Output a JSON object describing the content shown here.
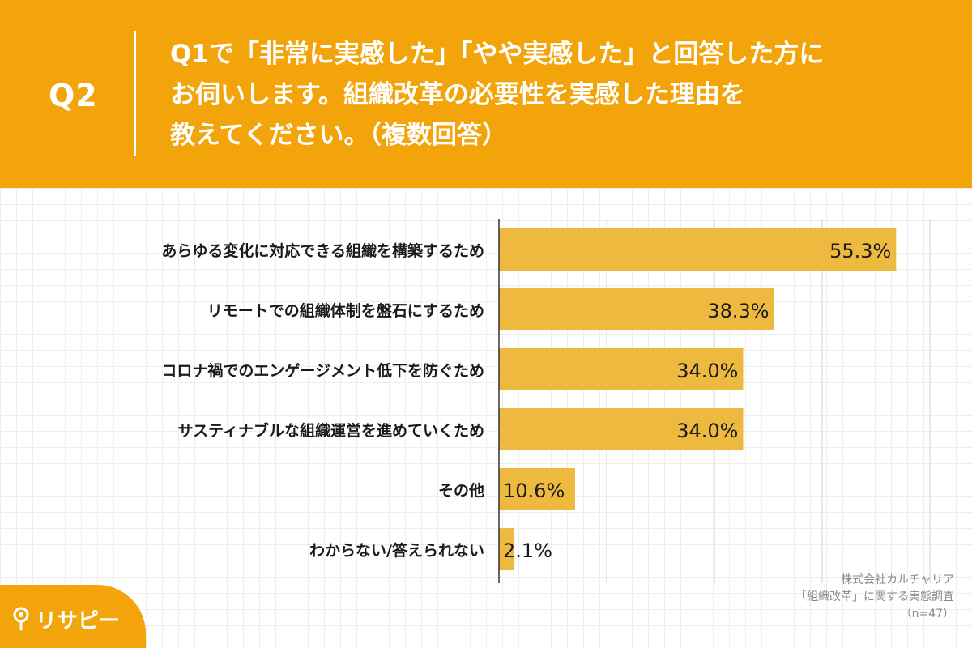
{
  "header": {
    "q_label": "Q2",
    "question_lines": [
      "Q1で「非常に実感した」「やや実感した」と回答した方に",
      "お伺いします。組織改革の必要性を実感した理由を",
      "教えてください。（複数回答）"
    ]
  },
  "chart_data": {
    "type": "bar",
    "orientation": "horizontal",
    "categories": [
      "あらゆる変化に対応できる組織を構築するため",
      "リモートでの組織体制を盤石にするため",
      "コロナ禍でのエンゲージメント低下を防ぐため",
      "サスティナブルな組織運営を進めていくため",
      "その他",
      "わからない/答えられない"
    ],
    "values": [
      55.3,
      38.3,
      34.0,
      34.0,
      10.6,
      2.1
    ],
    "value_labels": [
      "55.3%",
      "38.3%",
      "34.0%",
      "34.0%",
      "10.6%",
      "2.1%"
    ],
    "xlim": [
      0,
      60
    ],
    "gridline_values": [
      15,
      30,
      45,
      60
    ],
    "grid": true,
    "bar_color": "#EDBA3F",
    "title": "",
    "xlabel": "",
    "ylabel": ""
  },
  "source": {
    "lines": [
      "株式会社カルチャリア",
      "「組織改革」に関する実態調査",
      "（n=47）"
    ]
  },
  "logo": {
    "text": "リサピー"
  },
  "colors": {
    "background": "#F3A40B",
    "bar": "#EDBA3F",
    "text": "#1a1a1a"
  }
}
